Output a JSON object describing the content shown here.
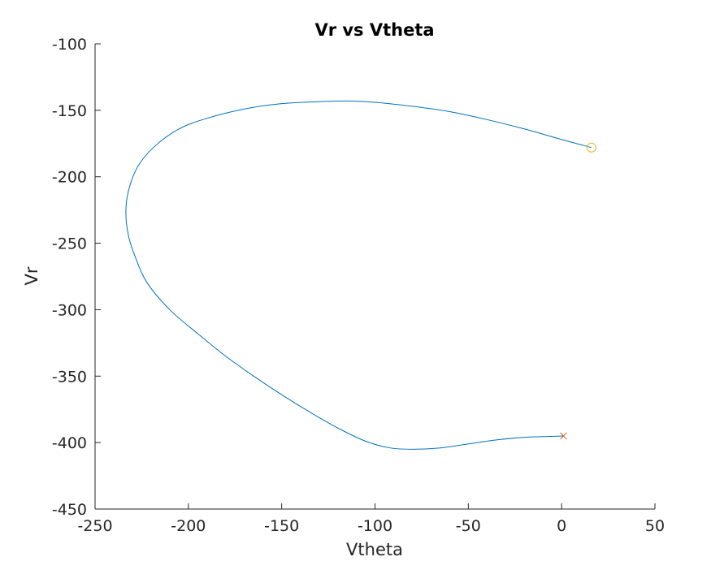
{
  "chart_data": {
    "type": "line",
    "title": "Vr vs Vtheta",
    "xlabel": "Vtheta",
    "ylabel": "Vr",
    "xlim": [
      -250,
      50
    ],
    "ylim": [
      -450,
      -100
    ],
    "xticks": [
      -250,
      -200,
      -150,
      -100,
      -50,
      0,
      50
    ],
    "yticks": [
      -100,
      -150,
      -200,
      -250,
      -300,
      -350,
      -400,
      -450
    ],
    "xtick_labels": [
      "-250",
      "-200",
      "-150",
      "-100",
      "-50",
      "0",
      "50"
    ],
    "ytick_labels": [
      "-100",
      "-150",
      "-200",
      "-250",
      "-300",
      "-350",
      "-400",
      "-450"
    ],
    "grid": false,
    "series": [
      {
        "color": "#0072BD",
        "x": [
          16,
          0,
          -20,
          -40,
          -60,
          -80,
          -100,
          -115,
          -130,
          -150,
          -170,
          -190,
          -205,
          -218,
          -227,
          -232,
          -233.5,
          -232,
          -228,
          -222,
          -210,
          -195,
          -180,
          -165,
          -150,
          -135,
          -120,
          -105,
          -92,
          -80,
          -65,
          -50,
          -35,
          -20,
          -10,
          1
        ],
        "y": [
          -178,
          -172,
          -164,
          -157,
          -151,
          -147,
          -144,
          -143,
          -143.5,
          -145,
          -149,
          -156,
          -164,
          -177,
          -192,
          -210,
          -227,
          -245,
          -262,
          -280,
          -300,
          -318,
          -335,
          -350,
          -364,
          -377,
          -389,
          -399,
          -404,
          -405,
          -404,
          -401,
          -398,
          -396,
          -395.5,
          -395
        ]
      }
    ],
    "markers": [
      {
        "symbol": "circle",
        "x": 16,
        "y": -178,
        "color": "#EDB120"
      },
      {
        "symbol": "cross",
        "x": 1,
        "y": -395,
        "color": "#D95319"
      }
    ]
  }
}
